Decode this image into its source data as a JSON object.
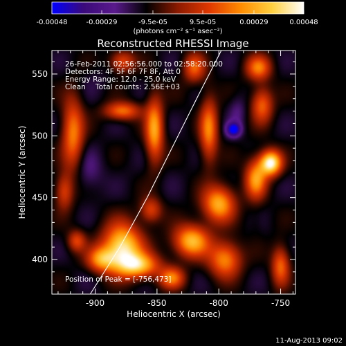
{
  "chart_data": {
    "type": "heatmap",
    "title": "Reconstructed RHESSI Image",
    "xlabel": "Heliocentric X (arcsec)",
    "ylabel": "Heliocentric Y (arcsec)",
    "xlim": [
      -935,
      -738
    ],
    "ylim": [
      372,
      569
    ],
    "x_ticks": [
      -900,
      -850,
      -800,
      -750
    ],
    "y_ticks": [
      400,
      450,
      500,
      550
    ],
    "x_tick_labels": [
      "-900",
      "-850",
      "-800",
      "-750"
    ],
    "y_tick_labels": [
      "400",
      "450",
      "500",
      "550"
    ],
    "colorbar": {
      "range": [
        -0.00048,
        0.00048
      ],
      "ticks": [
        -0.00048,
        -0.00029,
        -9.5e-05,
        9.5e-05,
        0.00029,
        0.00048
      ],
      "tick_labels": [
        "-0.00048",
        "-0.00029",
        "-9.5e-05",
        "9.5e-05",
        "0.00029",
        "0.00048"
      ],
      "unit_label": "(photons cm⁻² s⁻¹ asec⁻²)",
      "colormap": [
        "#0000ff",
        "#3a0a7a",
        "#5a1a8c",
        "#000000",
        "#8b1a00",
        "#e03800",
        "#ff8c00",
        "#ffd040",
        "#ffffff"
      ]
    },
    "annotations": {
      "time_range": "26-Feb-2011 02:56:56.000 to 02:58:20.000",
      "detectors": "Detectors: 4F 5F 6F 7F 8F, Att 0",
      "energy": "Energy Range: 12.0 - 25.0 keV",
      "algorithm": "Clean",
      "total_counts": "Total counts: 2.56E+03",
      "peak": "Position of Peak = [-756,473]"
    },
    "peak": [
      -756,
      473
    ],
    "limb_curve": [
      [
        -904,
        372
      ],
      [
        -880,
        410
      ],
      [
        -858,
        450
      ],
      [
        -838,
        490
      ],
      [
        -818,
        530
      ],
      [
        -798,
        569
      ]
    ],
    "sources": [
      {
        "x": -878,
        "y": 410,
        "value": 0.00042,
        "sx": 11,
        "sy": 13
      },
      {
        "x": -865,
        "y": 395,
        "value": 0.0003,
        "sx": 12,
        "sy": 7
      },
      {
        "x": -895,
        "y": 400,
        "value": 0.00022,
        "sx": 8,
        "sy": 7
      },
      {
        "x": -758,
        "y": 478,
        "value": 0.00048,
        "sx": 6,
        "sy": 7
      },
      {
        "x": -770,
        "y": 465,
        "value": 0.00026,
        "sx": 6,
        "sy": 11
      },
      {
        "x": -852,
        "y": 505,
        "value": 0.00028,
        "sx": 5,
        "sy": 18
      },
      {
        "x": -878,
        "y": 520,
        "value": 0.0002,
        "sx": 10,
        "sy": 5
      },
      {
        "x": -918,
        "y": 502,
        "value": 0.00022,
        "sx": 6,
        "sy": 20
      },
      {
        "x": -925,
        "y": 455,
        "value": 0.00012,
        "sx": 5,
        "sy": 10
      },
      {
        "x": -808,
        "y": 505,
        "value": 0.00022,
        "sx": 5,
        "sy": 18
      },
      {
        "x": -800,
        "y": 445,
        "value": 0.0003,
        "sx": 9,
        "sy": 10
      },
      {
        "x": -822,
        "y": 415,
        "value": 0.00032,
        "sx": 10,
        "sy": 9
      },
      {
        "x": -795,
        "y": 400,
        "value": 0.00024,
        "sx": 9,
        "sy": 10
      },
      {
        "x": -838,
        "y": 385,
        "value": 0.0002,
        "sx": 7,
        "sy": 6
      },
      {
        "x": -765,
        "y": 525,
        "value": 0.00018,
        "sx": 6,
        "sy": 10
      },
      {
        "x": -768,
        "y": 555,
        "value": 0.0002,
        "sx": 7,
        "sy": 7
      },
      {
        "x": -820,
        "y": 555,
        "value": 0.00016,
        "sx": 6,
        "sy": 8
      },
      {
        "x": -750,
        "y": 395,
        "value": 0.00018,
        "sx": 5,
        "sy": 11
      },
      {
        "x": -878,
        "y": 560,
        "value": 0.00014,
        "sx": 7,
        "sy": 6
      },
      {
        "x": -915,
        "y": 415,
        "value": 0.00012,
        "sx": 5,
        "sy": 6
      },
      {
        "x": -855,
        "y": 440,
        "value": 0.00012,
        "sx": 6,
        "sy": 7
      },
      {
        "x": -788,
        "y": 505,
        "value": -0.00048,
        "sx": 4,
        "sy": 4
      },
      {
        "x": -785,
        "y": 520,
        "value": -0.00022,
        "sx": 5,
        "sy": 9
      },
      {
        "x": -905,
        "y": 470,
        "value": -0.00022,
        "sx": 8,
        "sy": 12
      },
      {
        "x": -870,
        "y": 475,
        "value": -0.00014,
        "sx": 8,
        "sy": 8
      },
      {
        "x": -900,
        "y": 545,
        "value": -0.00016,
        "sx": 7,
        "sy": 8
      },
      {
        "x": -838,
        "y": 470,
        "value": -0.00014,
        "sx": 6,
        "sy": 8
      },
      {
        "x": -910,
        "y": 385,
        "value": -0.00014,
        "sx": 5,
        "sy": 6
      },
      {
        "x": -770,
        "y": 430,
        "value": -0.0001,
        "sx": 4,
        "sy": 8
      },
      {
        "x": -830,
        "y": 535,
        "value": -0.00012,
        "sx": 5,
        "sy": 7
      }
    ]
  },
  "footer": {
    "date": "11-Aug-2013 09:02"
  }
}
